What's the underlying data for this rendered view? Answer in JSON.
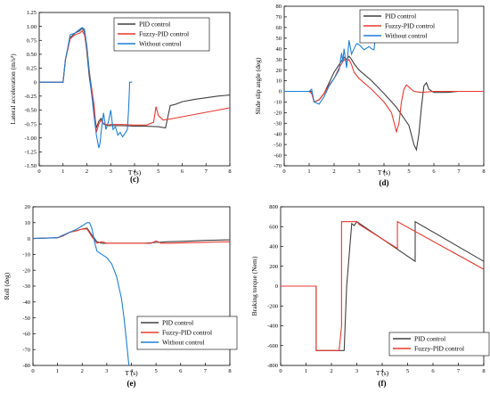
{
  "chart_data": [
    {
      "type": "line",
      "panel_label": "(c)",
      "xlabel": "T (s)",
      "ylabel": "Lateral acceleration (m/s²)",
      "xlim": [
        0,
        8
      ],
      "ylim": [
        -1.5,
        1.25
      ],
      "xticks": [
        "0",
        "1",
        "2",
        "3",
        "4",
        "5",
        "6",
        "7",
        "8"
      ],
      "yticks": [
        "1.25",
        "1.00",
        "0.75",
        "0.50",
        "0.25",
        "0",
        "-0.25",
        "-0.50",
        "-0.75",
        "-1.00",
        "-1.25",
        "-1.50"
      ],
      "legend_position": "top-right",
      "series": [
        {
          "name": "PID control",
          "color": "#404040",
          "x": [
            0,
            1.0,
            1.1,
            1.3,
            1.5,
            1.7,
            1.8,
            1.9,
            2.0,
            2.1,
            2.2,
            2.3,
            2.4,
            2.5,
            2.6,
            2.7,
            2.8,
            2.9,
            3.0,
            3.5,
            4.0,
            4.5,
            5.0,
            5.3,
            5.5,
            5.7,
            6.0,
            6.5,
            7.0,
            7.5,
            8.0
          ],
          "y": [
            0,
            0,
            0.4,
            0.8,
            0.88,
            0.92,
            0.97,
            0.9,
            0.55,
            0.1,
            -0.2,
            -0.5,
            -0.82,
            -0.7,
            -0.65,
            -0.75,
            -0.77,
            -0.78,
            -0.78,
            -0.78,
            -0.79,
            -0.79,
            -0.8,
            -0.82,
            -0.42,
            -0.4,
            -0.35,
            -0.31,
            -0.28,
            -0.25,
            -0.23
          ]
        },
        {
          "name": "Fuzzy-PID control",
          "color": "#e8392f",
          "x": [
            0,
            1.0,
            1.1,
            1.3,
            1.5,
            1.7,
            1.8,
            1.9,
            2.0,
            2.1,
            2.2,
            2.3,
            2.4,
            2.5,
            2.6,
            2.7,
            2.8,
            2.9,
            3.0,
            3.5,
            4.0,
            4.5,
            4.8,
            4.9,
            5.0,
            5.2,
            5.5,
            6.0,
            6.5,
            7.0,
            7.5,
            8.0
          ],
          "y": [
            0,
            0,
            0.4,
            0.78,
            0.85,
            0.88,
            0.92,
            0.85,
            0.6,
            0.2,
            -0.1,
            -0.4,
            -0.9,
            -0.75,
            -0.68,
            -0.74,
            -0.76,
            -0.77,
            -0.76,
            -0.76,
            -0.77,
            -0.77,
            -0.72,
            -0.44,
            -0.6,
            -0.68,
            -0.66,
            -0.62,
            -0.58,
            -0.54,
            -0.5,
            -0.46
          ]
        },
        {
          "name": "Without control",
          "color": "#1f7fd6",
          "x": [
            0,
            1.0,
            1.1,
            1.3,
            1.5,
            1.7,
            1.8,
            1.9,
            2.0,
            2.1,
            2.2,
            2.3,
            2.4,
            2.5,
            2.55,
            2.6,
            2.7,
            2.8,
            2.9,
            3.0,
            3.1,
            3.2,
            3.3,
            3.4,
            3.5,
            3.6,
            3.7,
            3.75,
            3.8,
            3.9
          ],
          "y": [
            0,
            0,
            0.4,
            0.85,
            0.88,
            0.95,
            0.98,
            0.95,
            0.65,
            0.2,
            -0.2,
            -0.6,
            -0.95,
            -1.18,
            -1.1,
            -0.9,
            -0.55,
            -0.85,
            -0.72,
            -0.5,
            -0.85,
            -0.8,
            -0.95,
            -0.9,
            -0.98,
            -0.92,
            -0.85,
            -0.5,
            0,
            0
          ]
        }
      ]
    },
    {
      "type": "line",
      "panel_label": "(d)",
      "xlabel": "T (s)",
      "ylabel": "Slide slip angle (deg)",
      "xlim": [
        0,
        8
      ],
      "ylim": [
        -70,
        80
      ],
      "xticks": [
        "0",
        "1",
        "2",
        "3",
        "4",
        "5",
        "6",
        "7",
        "8"
      ],
      "yticks": [
        "80",
        "70",
        "60",
        "50",
        "40",
        "30",
        "20",
        "10",
        "0",
        "-10",
        "-20",
        "-30",
        "-40",
        "-50",
        "-60",
        "-70"
      ],
      "legend_position": "top-right",
      "series": [
        {
          "name": "PID control",
          "color": "#404040",
          "x": [
            0,
            1.0,
            1.1,
            1.2,
            1.4,
            1.6,
            1.8,
            2.0,
            2.2,
            2.4,
            2.5,
            2.6,
            2.7,
            2.8,
            3.0,
            3.5,
            4.0,
            4.5,
            5.0,
            5.2,
            5.3,
            5.4,
            5.5,
            5.6,
            5.7,
            5.8,
            6.0,
            6.5,
            7.0,
            8.0
          ],
          "y": [
            0,
            0,
            0,
            -10,
            -8,
            -2,
            8,
            18,
            25,
            32,
            30,
            33,
            30,
            26,
            20,
            10,
            -2,
            -15,
            -32,
            -50,
            -55,
            -40,
            -15,
            5,
            8,
            2,
            -1,
            -1,
            0,
            0
          ]
        },
        {
          "name": "Fuzzy-PID control",
          "color": "#e8392f",
          "x": [
            0,
            1.0,
            1.1,
            1.2,
            1.4,
            1.6,
            1.8,
            2.0,
            2.2,
            2.4,
            2.5,
            2.6,
            2.7,
            2.8,
            3.0,
            3.5,
            4.0,
            4.3,
            4.5,
            4.6,
            4.7,
            4.8,
            4.9,
            5.0,
            5.2,
            5.5,
            6.0,
            8.0
          ],
          "y": [
            0,
            0,
            -2,
            -10,
            -8,
            -2,
            6,
            12,
            22,
            30,
            28,
            30,
            25,
            18,
            12,
            2,
            -10,
            -20,
            -38,
            -30,
            -10,
            2,
            6,
            4,
            0,
            -1,
            0,
            0
          ]
        },
        {
          "name": "Without control",
          "color": "#1f7fd6",
          "x": [
            0,
            1.0,
            1.1,
            1.2,
            1.4,
            1.6,
            1.8,
            2.0,
            2.2,
            2.3,
            2.35,
            2.4,
            2.5,
            2.6,
            2.7,
            2.8,
            2.9,
            3.0,
            3.2,
            3.4,
            3.5,
            3.6,
            3.7,
            3.8,
            3.9
          ],
          "y": [
            0,
            0,
            2,
            -10,
            -12,
            -5,
            5,
            12,
            20,
            36,
            28,
            40,
            22,
            48,
            35,
            40,
            45,
            44,
            39,
            42,
            40,
            39,
            63,
            64,
            64
          ]
        }
      ]
    },
    {
      "type": "line",
      "panel_label": "(e)",
      "xlabel": "T (s)",
      "ylabel": "Roll (deg)",
      "xlim": [
        0,
        8
      ],
      "ylim": [
        -80,
        20
      ],
      "xticks": [
        "0",
        "1",
        "2",
        "3",
        "4",
        "5",
        "6",
        "7",
        "8"
      ],
      "yticks": [
        "20",
        "10",
        "0",
        "-10",
        "-20",
        "-30",
        "-40",
        "-50",
        "-60",
        "-70",
        "-80"
      ],
      "legend_position": "bottom-right",
      "series": [
        {
          "name": "PID control",
          "color": "#404040",
          "x": [
            0,
            1.0,
            1.2,
            1.5,
            1.8,
            2.0,
            2.2,
            2.4,
            2.6,
            2.8,
            3.0,
            3.5,
            4.0,
            4.5,
            5.0,
            5.5,
            6.0,
            6.5,
            7.0,
            7.5,
            8.0
          ],
          "y": [
            0,
            0.5,
            1.5,
            4,
            5,
            6,
            6.5,
            2,
            -2,
            -3,
            -3,
            -3,
            -3,
            -3,
            -2.5,
            -2,
            -1.8,
            -1.5,
            -1.2,
            -1,
            -0.8
          ]
        },
        {
          "name": "Fuzzy-PID control",
          "color": "#e8392f",
          "x": [
            0,
            1.0,
            1.2,
            1.5,
            1.8,
            2.0,
            2.2,
            2.4,
            2.6,
            2.8,
            3.0,
            3.5,
            4.0,
            4.5,
            4.8,
            5.0,
            5.2,
            5.5,
            6.0,
            6.5,
            7.0,
            7.5,
            8.0
          ],
          "y": [
            0,
            0.5,
            1.5,
            4,
            5,
            6,
            6,
            1,
            -3,
            -2,
            -3,
            -3,
            -3,
            -3,
            -3,
            -1.5,
            -3,
            -3,
            -2.8,
            -2.6,
            -2.4,
            -2.2,
            -2
          ]
        },
        {
          "name": "Without control",
          "color": "#1f7fd6",
          "x": [
            0,
            1.0,
            1.2,
            1.5,
            1.8,
            2.0,
            2.2,
            2.3,
            2.4,
            2.5,
            2.6,
            2.8,
            3.0,
            3.2,
            3.4,
            3.6,
            3.7,
            3.8,
            3.9
          ],
          "y": [
            0,
            0.5,
            2,
            4,
            6,
            8,
            10,
            10,
            6,
            -2,
            -8,
            -10,
            -12,
            -16,
            -24,
            -38,
            -50,
            -65,
            -80
          ]
        }
      ]
    },
    {
      "type": "line",
      "panel_label": "(f)",
      "xlabel": "T (s)",
      "ylabel": "Braking torque (Nem)",
      "xlim": [
        0,
        8
      ],
      "ylim": [
        -800,
        800
      ],
      "xticks": [
        "0",
        "1",
        "2",
        "3",
        "4",
        "5",
        "6",
        "7",
        "8"
      ],
      "yticks": [
        "800",
        "600",
        "400",
        "200",
        "0",
        "-200",
        "-400",
        "-600",
        "-800"
      ],
      "legend_position": "bottom-right",
      "series": [
        {
          "name": "PID control",
          "color": "#404040",
          "x": [
            0,
            1.4,
            1.4,
            2.4,
            2.5,
            2.6,
            2.8,
            2.9,
            3.0,
            5.3,
            5.3,
            8.0
          ],
          "y": [
            0,
            0,
            -650,
            -650,
            -650,
            0,
            630,
            610,
            650,
            250,
            650,
            250
          ]
        },
        {
          "name": "Fuzzy-PID control",
          "color": "#e8392f",
          "x": [
            0,
            1.4,
            1.4,
            2.3,
            2.4,
            2.4,
            3.0,
            3.1,
            4.6,
            4.6,
            8.0
          ],
          "y": [
            0,
            0,
            -650,
            -650,
            -400,
            650,
            650,
            620,
            380,
            650,
            170
          ]
        }
      ]
    }
  ]
}
